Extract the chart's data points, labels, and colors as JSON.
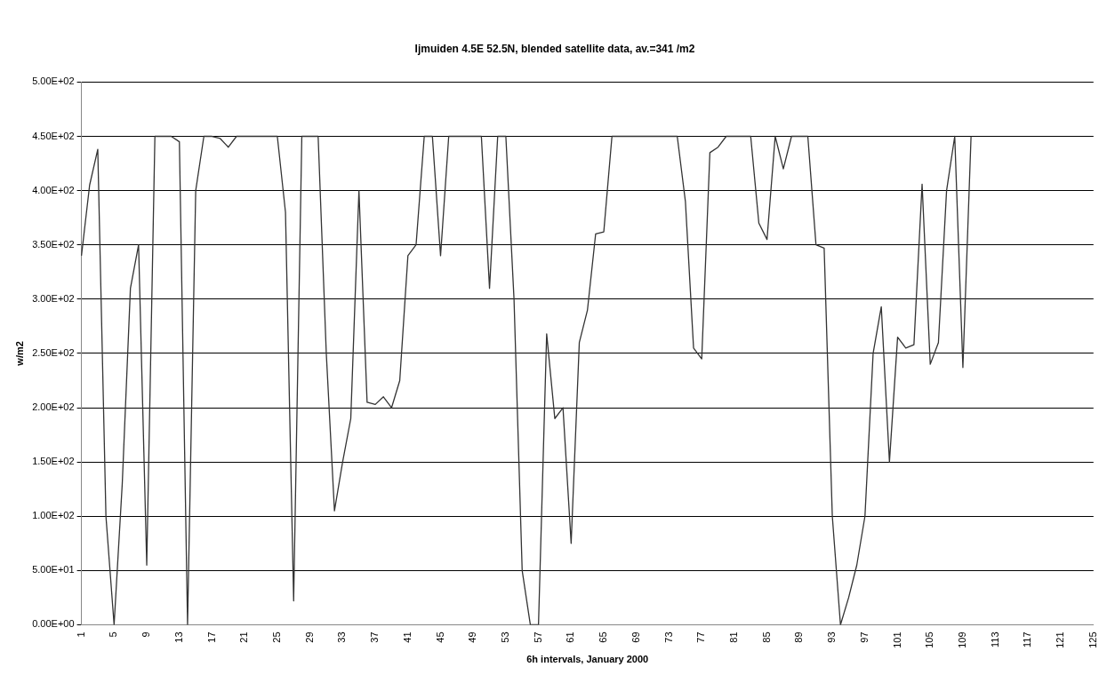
{
  "chart_data": {
    "type": "line",
    "title": "Ijmuiden 4.5E 52.5N, blended satellite data, av.=341 /m2",
    "xlabel": "6h intervals, January 2000",
    "ylabel": "w/m2",
    "categories": [
      "1",
      null,
      null,
      null,
      "5",
      null,
      null,
      null,
      "9",
      null,
      null,
      null,
      "13",
      null,
      null,
      null,
      "17",
      null,
      null,
      null,
      "21",
      null,
      null,
      null,
      "25",
      null,
      null,
      null,
      "29",
      null,
      null,
      null,
      "33",
      null,
      null,
      null,
      "37",
      null,
      null,
      null,
      "41",
      null,
      null,
      null,
      "45",
      null,
      null,
      null,
      "49",
      null,
      null,
      null,
      "53",
      null,
      null,
      null,
      "57",
      null,
      null,
      null,
      "61",
      null,
      null,
      null,
      "65",
      null,
      null,
      null,
      "69",
      null,
      null,
      null,
      "73",
      null,
      null,
      null,
      "77",
      null,
      null,
      null,
      "81",
      null,
      null,
      null,
      "85",
      null,
      null,
      null,
      "89",
      null,
      null,
      null,
      "93",
      null,
      null,
      null,
      "97",
      null,
      null,
      null,
      "101",
      null,
      null,
      null,
      "105",
      null,
      null,
      null,
      "109",
      null,
      null,
      null,
      "113",
      null,
      null,
      null,
      "117",
      null,
      null,
      null,
      "121",
      null,
      null,
      null,
      "125"
    ],
    "series": [
      {
        "color": "#333333",
        "values": [
          340,
          405,
          438,
          100,
          0,
          130,
          310,
          350,
          55,
          450,
          450,
          450,
          445,
          0,
          400,
          450,
          450,
          448,
          440,
          450,
          450,
          450,
          450,
          450,
          450,
          380,
          22,
          450,
          450,
          450,
          250,
          105,
          150,
          190,
          400,
          205,
          203,
          210,
          200,
          225,
          340,
          350,
          450,
          450,
          340,
          450,
          450,
          450,
          450,
          450,
          310,
          450,
          450,
          300,
          50,
          0,
          0,
          268,
          190,
          200,
          75,
          260,
          290,
          360,
          362,
          450,
          450,
          450,
          450,
          450,
          450,
          450,
          450,
          450,
          390,
          255,
          245,
          435,
          440,
          450,
          450,
          450,
          450,
          370,
          355,
          450,
          420,
          450,
          450,
          450,
          350,
          347,
          100,
          0,
          25,
          55,
          100,
          250,
          293,
          150,
          265,
          255,
          258,
          406,
          240,
          260,
          400,
          450,
          237,
          450,
          null,
          null,
          null,
          null,
          null,
          null,
          null,
          null,
          null,
          null,
          null,
          null,
          null,
          null,
          null
        ]
      }
    ],
    "ylim": [
      0,
      500
    ],
    "yticks": [
      {
        "value": 0,
        "label": "0.00E+00"
      },
      {
        "value": 50,
        "label": "5.00E+01"
      },
      {
        "value": 100,
        "label": "1.00E+02"
      },
      {
        "value": 150,
        "label": "1.50E+02"
      },
      {
        "value": 200,
        "label": "2.00E+02"
      },
      {
        "value": 250,
        "label": "2.50E+02"
      },
      {
        "value": 300,
        "label": "3.00E+02"
      },
      {
        "value": 350,
        "label": "3.50E+02"
      },
      {
        "value": 400,
        "label": "4.00E+02"
      },
      {
        "value": 450,
        "label": "4.50E+02"
      },
      {
        "value": 500,
        "label": "5.00E+02"
      }
    ],
    "grid": "y",
    "legend": false,
    "marker": "none",
    "line_style": "solid"
  }
}
